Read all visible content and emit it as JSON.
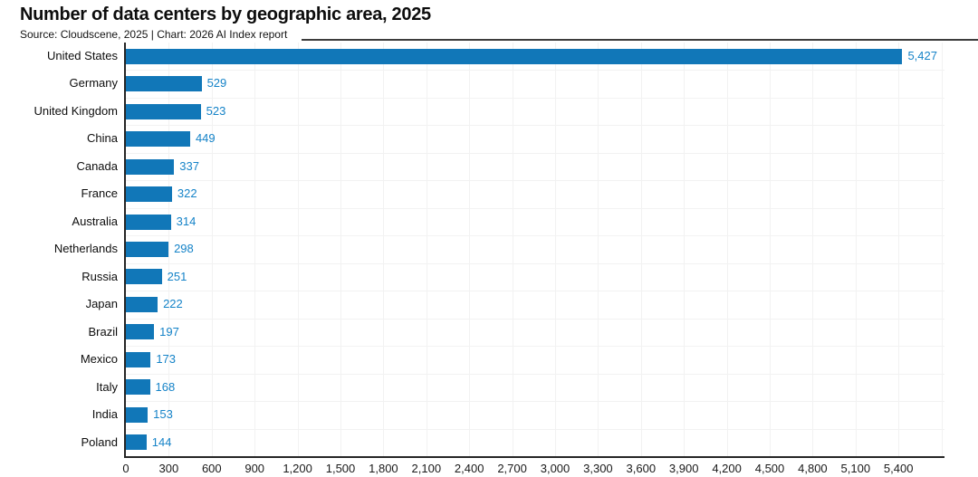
{
  "header": {
    "title": "Number of data centers by geographic area, 2025",
    "source_line": "Source: Cloudscene, 2025 | Chart: 2026 AI Index report"
  },
  "chart_data": {
    "type": "bar",
    "orientation": "horizontal",
    "title": "Number of data centers by geographic area, 2025",
    "source": "Source: Cloudscene, 2025 | Chart: 2026 AI Index report",
    "categories": [
      "United States",
      "Germany",
      "United Kingdom",
      "China",
      "Canada",
      "France",
      "Australia",
      "Netherlands",
      "Russia",
      "Japan",
      "Brazil",
      "Mexico",
      "Italy",
      "India",
      "Poland"
    ],
    "values": [
      5427,
      529,
      523,
      449,
      337,
      322,
      314,
      298,
      251,
      222,
      197,
      173,
      168,
      153,
      144
    ],
    "value_labels": [
      "5,427",
      "529",
      "523",
      "449",
      "337",
      "322",
      "314",
      "298",
      "251",
      "222",
      "197",
      "173",
      "168",
      "153",
      "144"
    ],
    "xlabel": "",
    "ylabel": "",
    "xlim": [
      0,
      5700
    ],
    "xticks": [
      0,
      300,
      600,
      900,
      1200,
      1500,
      1800,
      2100,
      2400,
      2700,
      3000,
      3300,
      3600,
      3900,
      4200,
      4500,
      4800,
      5100,
      5400
    ],
    "xtick_labels": [
      "0",
      "300",
      "600",
      "900",
      "1,200",
      "1,500",
      "1,800",
      "2,100",
      "2,400",
      "2,700",
      "3,000",
      "3,300",
      "3,600",
      "3,900",
      "4,200",
      "4,500",
      "4,800",
      "5,100",
      "5,400"
    ],
    "grid": true,
    "legend": false,
    "value_labels_shown": true,
    "colors": {
      "bar": "#1177b8",
      "value_label": "#1583c8",
      "axis": "#262626",
      "gridline": "#f2f2f2",
      "text": "#111111"
    }
  }
}
